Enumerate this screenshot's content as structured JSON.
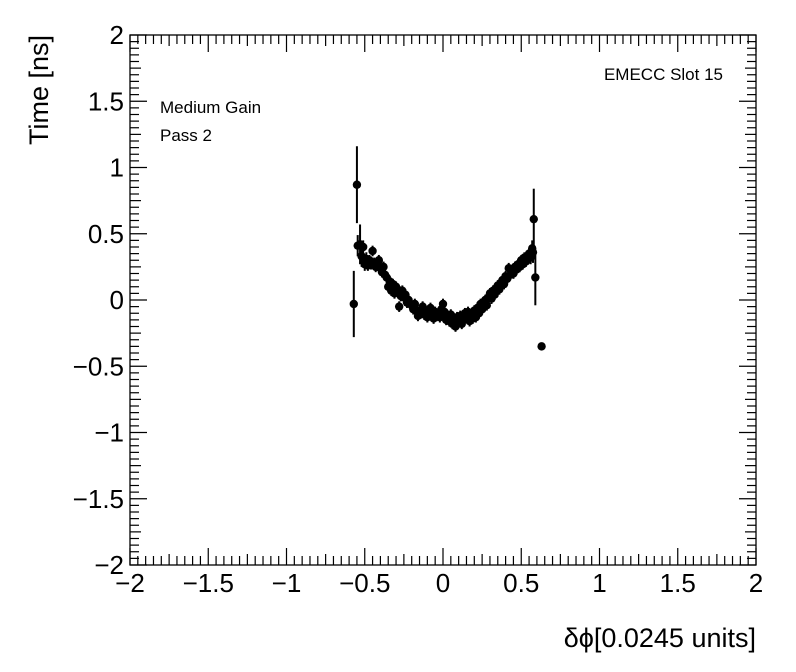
{
  "chart_data": {
    "type": "scatter",
    "xlabel": "δϕ[0.0245 units]",
    "ylabel": "Time [ns]",
    "xlim": [
      -2,
      2
    ],
    "ylim": [
      -2,
      2
    ],
    "x_tick_labels": [
      "−2",
      "−1.5",
      "−1",
      "−0.5",
      "0",
      "0.5",
      "1",
      "1.5",
      "2"
    ],
    "y_tick_labels": [
      "−2",
      "−1.5",
      "−1",
      "−0.5",
      "0",
      "0.5",
      "1",
      "1.5",
      "2"
    ],
    "annotations": {
      "top_right": "EMECC Slot 15",
      "top_left_line1": "Medium Gain",
      "top_left_line2": "Pass 2"
    },
    "grid": false,
    "points": [
      {
        "x": -0.57,
        "y": -0.03,
        "err": 0.25
      },
      {
        "x": -0.55,
        "y": 0.87,
        "err": 0.29
      },
      {
        "x": -0.545,
        "y": 0.41,
        "err": 0.08
      },
      {
        "x": -0.53,
        "y": 0.42,
        "err": 0.15
      },
      {
        "x": -0.52,
        "y": 0.33,
        "err": 0.08
      },
      {
        "x": -0.51,
        "y": 0.4,
        "err": 0.05
      },
      {
        "x": -0.5,
        "y": 0.27,
        "err": 0.05
      },
      {
        "x": -0.49,
        "y": 0.31,
        "err": 0.05
      },
      {
        "x": -0.48,
        "y": 0.26,
        "err": 0.04
      },
      {
        "x": -0.47,
        "y": 0.3,
        "err": 0.04
      },
      {
        "x": -0.46,
        "y": 0.27,
        "err": 0.04
      },
      {
        "x": -0.45,
        "y": 0.37,
        "err": 0.04
      },
      {
        "x": -0.44,
        "y": 0.28,
        "err": 0.04
      },
      {
        "x": -0.43,
        "y": 0.25,
        "err": 0.04
      },
      {
        "x": -0.42,
        "y": 0.26,
        "err": 0.04
      },
      {
        "x": -0.41,
        "y": 0.3,
        "err": 0.04
      },
      {
        "x": -0.4,
        "y": 0.24,
        "err": 0.04
      },
      {
        "x": -0.39,
        "y": 0.21,
        "err": 0.04
      },
      {
        "x": -0.38,
        "y": 0.25,
        "err": 0.04
      },
      {
        "x": -0.37,
        "y": 0.19,
        "err": 0.04
      },
      {
        "x": -0.36,
        "y": 0.17,
        "err": 0.04
      },
      {
        "x": -0.35,
        "y": 0.1,
        "err": 0.04
      },
      {
        "x": -0.34,
        "y": 0.14,
        "err": 0.04
      },
      {
        "x": -0.33,
        "y": 0.07,
        "err": 0.04
      },
      {
        "x": -0.32,
        "y": 0.12,
        "err": 0.04
      },
      {
        "x": -0.31,
        "y": 0.05,
        "err": 0.04
      },
      {
        "x": -0.3,
        "y": 0.1,
        "err": 0.04
      },
      {
        "x": -0.29,
        "y": 0.08,
        "err": 0.04
      },
      {
        "x": -0.28,
        "y": -0.05,
        "err": 0.04
      },
      {
        "x": -0.27,
        "y": 0.03,
        "err": 0.04
      },
      {
        "x": -0.26,
        "y": 0.07,
        "err": 0.04
      },
      {
        "x": -0.25,
        "y": 0.02,
        "err": 0.04
      },
      {
        "x": -0.24,
        "y": 0.04,
        "err": 0.04
      },
      {
        "x": -0.23,
        "y": -0.02,
        "err": 0.04
      },
      {
        "x": -0.22,
        "y": 0.0,
        "err": 0.04
      },
      {
        "x": -0.21,
        "y": -0.03,
        "err": 0.04
      },
      {
        "x": -0.2,
        "y": -0.04,
        "err": 0.04
      },
      {
        "x": -0.19,
        "y": -0.07,
        "err": 0.04
      },
      {
        "x": -0.18,
        "y": -0.03,
        "err": 0.04
      },
      {
        "x": -0.17,
        "y": -0.08,
        "err": 0.04
      },
      {
        "x": -0.16,
        "y": -0.12,
        "err": 0.04
      },
      {
        "x": -0.15,
        "y": -0.08,
        "err": 0.04
      },
      {
        "x": -0.14,
        "y": -0.1,
        "err": 0.04
      },
      {
        "x": -0.13,
        "y": -0.05,
        "err": 0.04
      },
      {
        "x": -0.12,
        "y": -0.11,
        "err": 0.04
      },
      {
        "x": -0.11,
        "y": -0.09,
        "err": 0.04
      },
      {
        "x": -0.1,
        "y": -0.13,
        "err": 0.04
      },
      {
        "x": -0.09,
        "y": -0.1,
        "err": 0.04
      },
      {
        "x": -0.08,
        "y": -0.06,
        "err": 0.04
      },
      {
        "x": -0.07,
        "y": -0.11,
        "err": 0.04
      },
      {
        "x": -0.06,
        "y": -0.14,
        "err": 0.04
      },
      {
        "x": -0.05,
        "y": -0.09,
        "err": 0.04
      },
      {
        "x": -0.04,
        "y": -0.12,
        "err": 0.04
      },
      {
        "x": -0.03,
        "y": -0.1,
        "err": 0.04
      },
      {
        "x": -0.02,
        "y": -0.13,
        "err": 0.04
      },
      {
        "x": -0.01,
        "y": -0.07,
        "err": 0.04
      },
      {
        "x": 0.0,
        "y": -0.03,
        "err": 0.04
      },
      {
        "x": 0.01,
        "y": -0.09,
        "err": 0.04
      },
      {
        "x": 0.02,
        "y": -0.15,
        "err": 0.04
      },
      {
        "x": 0.03,
        "y": -0.12,
        "err": 0.04
      },
      {
        "x": 0.04,
        "y": -0.16,
        "err": 0.04
      },
      {
        "x": 0.05,
        "y": -0.11,
        "err": 0.04
      },
      {
        "x": 0.06,
        "y": -0.18,
        "err": 0.04
      },
      {
        "x": 0.07,
        "y": -0.14,
        "err": 0.04
      },
      {
        "x": 0.08,
        "y": -0.2,
        "err": 0.04
      },
      {
        "x": 0.09,
        "y": -0.13,
        "err": 0.04
      },
      {
        "x": 0.1,
        "y": -0.17,
        "err": 0.04
      },
      {
        "x": 0.11,
        "y": -0.12,
        "err": 0.04
      },
      {
        "x": 0.12,
        "y": -0.18,
        "err": 0.04
      },
      {
        "x": 0.13,
        "y": -0.15,
        "err": 0.04
      },
      {
        "x": 0.14,
        "y": -0.1,
        "err": 0.04
      },
      {
        "x": 0.15,
        "y": -0.13,
        "err": 0.04
      },
      {
        "x": 0.16,
        "y": -0.09,
        "err": 0.04
      },
      {
        "x": 0.17,
        "y": -0.16,
        "err": 0.04
      },
      {
        "x": 0.18,
        "y": -0.11,
        "err": 0.04
      },
      {
        "x": 0.19,
        "y": -0.14,
        "err": 0.04
      },
      {
        "x": 0.2,
        "y": -0.08,
        "err": 0.04
      },
      {
        "x": 0.21,
        "y": -0.13,
        "err": 0.04
      },
      {
        "x": 0.22,
        "y": -0.06,
        "err": 0.04
      },
      {
        "x": 0.23,
        "y": -0.1,
        "err": 0.04
      },
      {
        "x": 0.24,
        "y": -0.03,
        "err": 0.04
      },
      {
        "x": 0.25,
        "y": -0.07,
        "err": 0.04
      },
      {
        "x": 0.26,
        "y": -0.02,
        "err": 0.04
      },
      {
        "x": 0.27,
        "y": 0.0,
        "err": 0.04
      },
      {
        "x": 0.28,
        "y": -0.04,
        "err": 0.04
      },
      {
        "x": 0.29,
        "y": 0.02,
        "err": 0.04
      },
      {
        "x": 0.3,
        "y": 0.05,
        "err": 0.04
      },
      {
        "x": 0.31,
        "y": 0.01,
        "err": 0.04
      },
      {
        "x": 0.32,
        "y": 0.07,
        "err": 0.04
      },
      {
        "x": 0.33,
        "y": 0.04,
        "err": 0.04
      },
      {
        "x": 0.34,
        "y": 0.09,
        "err": 0.04
      },
      {
        "x": 0.35,
        "y": 0.11,
        "err": 0.04
      },
      {
        "x": 0.36,
        "y": 0.08,
        "err": 0.04
      },
      {
        "x": 0.37,
        "y": 0.13,
        "err": 0.04
      },
      {
        "x": 0.38,
        "y": 0.15,
        "err": 0.04
      },
      {
        "x": 0.39,
        "y": 0.12,
        "err": 0.04
      },
      {
        "x": 0.4,
        "y": 0.18,
        "err": 0.04
      },
      {
        "x": 0.41,
        "y": 0.16,
        "err": 0.04
      },
      {
        "x": 0.42,
        "y": 0.24,
        "err": 0.04
      },
      {
        "x": 0.43,
        "y": 0.19,
        "err": 0.04
      },
      {
        "x": 0.44,
        "y": 0.22,
        "err": 0.04
      },
      {
        "x": 0.45,
        "y": 0.2,
        "err": 0.04
      },
      {
        "x": 0.46,
        "y": 0.25,
        "err": 0.04
      },
      {
        "x": 0.47,
        "y": 0.23,
        "err": 0.04
      },
      {
        "x": 0.48,
        "y": 0.27,
        "err": 0.04
      },
      {
        "x": 0.49,
        "y": 0.25,
        "err": 0.04
      },
      {
        "x": 0.5,
        "y": 0.3,
        "err": 0.04
      },
      {
        "x": 0.51,
        "y": 0.27,
        "err": 0.04
      },
      {
        "x": 0.52,
        "y": 0.32,
        "err": 0.04
      },
      {
        "x": 0.53,
        "y": 0.29,
        "err": 0.04
      },
      {
        "x": 0.54,
        "y": 0.33,
        "err": 0.04
      },
      {
        "x": 0.55,
        "y": 0.35,
        "err": 0.04
      },
      {
        "x": 0.56,
        "y": 0.32,
        "err": 0.05
      },
      {
        "x": 0.57,
        "y": 0.39,
        "err": 0.06
      },
      {
        "x": 0.575,
        "y": 0.36,
        "err": 0.08
      },
      {
        "x": 0.58,
        "y": 0.61,
        "err": 0.23
      },
      {
        "x": 0.59,
        "y": 0.17,
        "err": 0.21
      },
      {
        "x": 0.63,
        "y": -0.35,
        "err": 0.0
      }
    ]
  }
}
